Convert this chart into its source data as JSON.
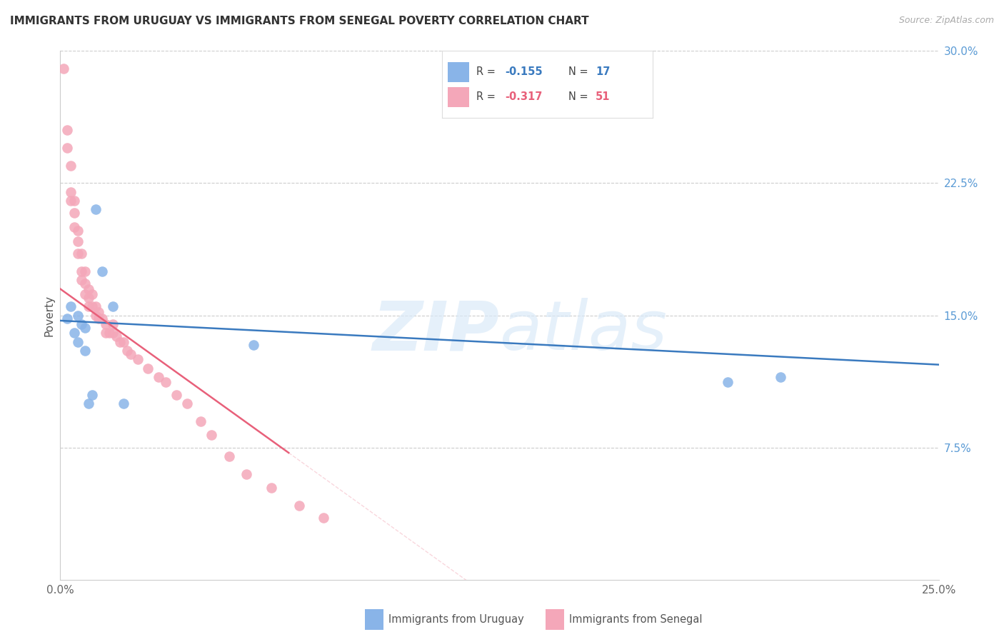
{
  "title": "IMMIGRANTS FROM URUGUAY VS IMMIGRANTS FROM SENEGAL POVERTY CORRELATION CHART",
  "source": "Source: ZipAtlas.com",
  "ylabel": "Poverty",
  "xlim": [
    0,
    0.25
  ],
  "ylim": [
    0,
    0.3
  ],
  "yticks_right": [
    0.075,
    0.15,
    0.225,
    0.3
  ],
  "ytick_labels_right": [
    "7.5%",
    "15.0%",
    "22.5%",
    "30.0%"
  ],
  "legend_label1": "Immigrants from Uruguay",
  "legend_label2": "Immigrants from Senegal",
  "color_uruguay": "#89b4e8",
  "color_senegal": "#f4a7b9",
  "color_line_uruguay": "#3a7abf",
  "color_line_senegal": "#e8607a",
  "uruguay_x": [
    0.002,
    0.003,
    0.004,
    0.005,
    0.005,
    0.006,
    0.007,
    0.007,
    0.008,
    0.009,
    0.01,
    0.012,
    0.015,
    0.018,
    0.055,
    0.19,
    0.205
  ],
  "uruguay_y": [
    0.148,
    0.155,
    0.14,
    0.135,
    0.15,
    0.145,
    0.143,
    0.13,
    0.1,
    0.105,
    0.21,
    0.175,
    0.155,
    0.1,
    0.133,
    0.112,
    0.115
  ],
  "senegal_x": [
    0.001,
    0.002,
    0.002,
    0.003,
    0.003,
    0.003,
    0.004,
    0.004,
    0.004,
    0.005,
    0.005,
    0.005,
    0.006,
    0.006,
    0.006,
    0.007,
    0.007,
    0.007,
    0.008,
    0.008,
    0.008,
    0.009,
    0.009,
    0.01,
    0.01,
    0.011,
    0.011,
    0.012,
    0.013,
    0.013,
    0.014,
    0.015,
    0.015,
    0.016,
    0.017,
    0.018,
    0.019,
    0.02,
    0.022,
    0.025,
    0.028,
    0.03,
    0.033,
    0.036,
    0.04,
    0.043,
    0.048,
    0.053,
    0.06,
    0.068,
    0.075
  ],
  "senegal_y": [
    0.29,
    0.255,
    0.245,
    0.235,
    0.22,
    0.215,
    0.215,
    0.208,
    0.2,
    0.198,
    0.192,
    0.185,
    0.185,
    0.175,
    0.17,
    0.175,
    0.168,
    0.162,
    0.165,
    0.16,
    0.155,
    0.162,
    0.155,
    0.155,
    0.15,
    0.152,
    0.148,
    0.148,
    0.145,
    0.14,
    0.14,
    0.145,
    0.14,
    0.138,
    0.135,
    0.135,
    0.13,
    0.128,
    0.125,
    0.12,
    0.115,
    0.112,
    0.105,
    0.1,
    0.09,
    0.082,
    0.07,
    0.06,
    0.052,
    0.042,
    0.035
  ],
  "line_blue_x0": 0.0,
  "line_blue_y0": 0.147,
  "line_blue_x1": 0.25,
  "line_blue_y1": 0.122,
  "line_pink_x0": 0.0,
  "line_pink_y0": 0.165,
  "line_pink_x1": 0.065,
  "line_pink_y1": 0.072
}
